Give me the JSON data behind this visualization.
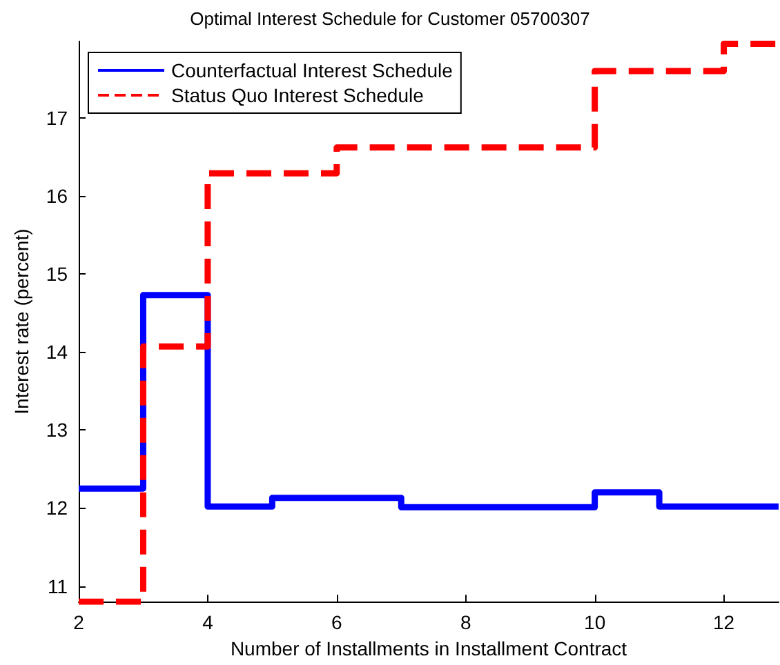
{
  "chart_data": {
    "type": "step",
    "title": "Optimal Interest Schedule for Customer 05700307",
    "xlabel": "Number of Installments in Installment Contract",
    "ylabel": "Interest rate (percent)",
    "series": [
      {
        "name": "Counterfactual Interest Schedule",
        "color": "#0000ff",
        "line_style": "solid",
        "x": [
          2,
          3,
          4,
          5,
          7,
          10,
          11,
          12.85
        ],
        "values": [
          12.25,
          14.73,
          12.02,
          12.13,
          12.01,
          12.2,
          12.02,
          12.02
        ]
      },
      {
        "name": "Status Quo Interest Schedule",
        "color": "#ff0000",
        "line_style": "dashed",
        "x": [
          2,
          3,
          4,
          6,
          10,
          12,
          12.85
        ],
        "values": [
          10.8,
          14.07,
          16.29,
          16.62,
          17.6,
          17.95,
          17.95
        ]
      }
    ],
    "xlim": [
      2,
      12.85
    ],
    "xticks": [
      2,
      4,
      6,
      8,
      10,
      12
    ],
    "ylim": [
      10.8,
      17.98
    ],
    "yticks": [
      11,
      12,
      13,
      14,
      15,
      16,
      17
    ],
    "grid": false,
    "legend": "top left",
    "marker": "none"
  }
}
